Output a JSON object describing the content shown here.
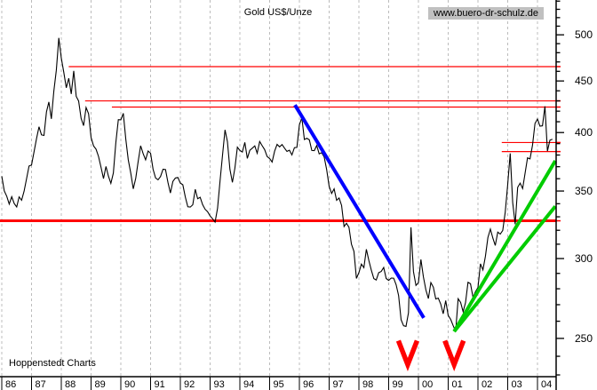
{
  "header": {
    "title": "Gold US$/Unze",
    "website": "www.buero-dr-schulz.de"
  },
  "footer": {
    "brand": "Hoppenstedt Charts"
  },
  "colors": {
    "price": "#000000",
    "grid": "#bcbcbc",
    "axis": "#000000",
    "resistance": "#ff0000",
    "downtrend": "#0000ff",
    "uptrend": "#00cc00",
    "annotation": "#ff0000",
    "website_bg": "#c0c0c0"
  },
  "chart_data": {
    "type": "line",
    "title": "Gold US$/Unze",
    "x_axis": {
      "labels": [
        "86",
        "87",
        "88",
        "89",
        "90",
        "91",
        "92",
        "93",
        "94",
        "95",
        "96",
        "97",
        "98",
        "99",
        "00",
        "01",
        "02",
        "03",
        "04"
      ],
      "start_year": 1986,
      "end_year": 2004.63,
      "gridlines": "dashed-vertical"
    },
    "y_axis": {
      "side": "right",
      "scale": "log",
      "ticks": [
        250,
        300,
        350,
        400,
        450,
        500
      ],
      "minor_tick_step": 10,
      "minor_tick_range": [
        230,
        540
      ],
      "unit": "US$/oz"
    },
    "series": {
      "name": "Gold US$/Unze",
      "interval": "monthly",
      "start_year": 1986,
      "values": [
        362,
        352,
        344,
        340,
        345,
        340,
        338,
        344,
        342,
        350,
        362,
        372,
        370,
        385,
        396,
        405,
        400,
        397,
        420,
        428,
        414,
        440,
        462,
        496,
        472,
        458,
        443,
        450,
        435,
        460,
        437,
        431,
        412,
        406,
        422,
        418,
        398,
        390,
        385,
        380,
        370,
        362,
        370,
        361,
        357,
        366,
        390,
        412,
        410,
        416,
        393,
        374,
        366,
        352,
        360,
        376,
        388,
        380,
        375,
        382,
        380,
        366,
        362,
        357,
        360,
        366,
        368,
        356,
        348,
        357,
        360,
        361,
        355,
        353,
        344,
        338,
        336,
        340,
        350,
        342,
        346,
        339,
        334,
        333,
        329,
        328,
        326,
        336,
        358,
        382,
        404,
        390,
        368,
        358,
        370,
        388,
        386,
        381,
        389,
        377,
        383,
        388,
        386,
        380,
        392,
        390,
        384,
        379,
        378,
        376,
        382,
        390,
        385,
        387,
        386,
        383,
        384,
        382,
        386,
        389,
        406,
        415,
        396,
        393,
        391,
        385,
        383,
        387,
        383,
        381,
        378,
        369,
        355,
        346,
        352,
        344,
        343,
        340,
        324,
        324,
        322,
        311,
        306,
        288,
        289,
        297,
        295,
        308,
        299,
        292,
        288,
        284,
        289,
        292,
        294,
        288,
        287,
        287,
        286,
        282,
        277,
        261,
        256,
        257,
        264,
        322,
        292,
        283,
        284,
        300,
        286,
        280,
        275,
        285,
        281,
        274,
        273,
        270,
        266,
        272,
        265,
        261,
        258,
        255,
        272,
        270,
        267,
        272,
        284,
        282,
        275,
        277,
        281,
        295,
        294,
        302,
        314,
        322,
        313,
        309,
        319,
        316,
        320,
        333,
        357,
        382,
        340,
        326,
        355,
        356,
        351,
        363,
        379,
        378,
        389,
        407,
        415,
        404,
        408,
        424,
        384,
        393,
        394
      ]
    },
    "trendlines": [
      {
        "name": "downtrend-1996-2000",
        "color": "#0000ff",
        "width": 4,
        "from": [
          1995.85,
          426
        ],
        "to": [
          2000.18,
          262
        ]
      },
      {
        "name": "uptrend-steep",
        "color": "#00cc00",
        "width": 4,
        "from": [
          2001.2,
          254
        ],
        "to": [
          2004.6,
          375
        ]
      },
      {
        "name": "uptrend-shallow",
        "color": "#00cc00",
        "width": 4,
        "from": [
          2001.2,
          254
        ],
        "to": [
          2004.6,
          338
        ]
      }
    ],
    "levels": [
      {
        "price": 465,
        "from_year": 1988.25,
        "thick": false
      },
      {
        "price": 430,
        "from_year": 1988.8,
        "thick": false
      },
      {
        "price": 424,
        "from_year": 1989.7,
        "thick": false
      },
      {
        "price": 391,
        "from_year": 2002.8,
        "thick": false
      },
      {
        "price": 383,
        "from_year": 2002.8,
        "thick": false
      },
      {
        "price": 327,
        "from_year": 1985.94,
        "thick": true
      }
    ],
    "annotations": [
      {
        "text": "V",
        "year": 1999.64,
        "price": 242,
        "color": "#ff0000"
      },
      {
        "text": "V",
        "year": 2001.2,
        "price": 242,
        "color": "#ff0000"
      }
    ]
  }
}
